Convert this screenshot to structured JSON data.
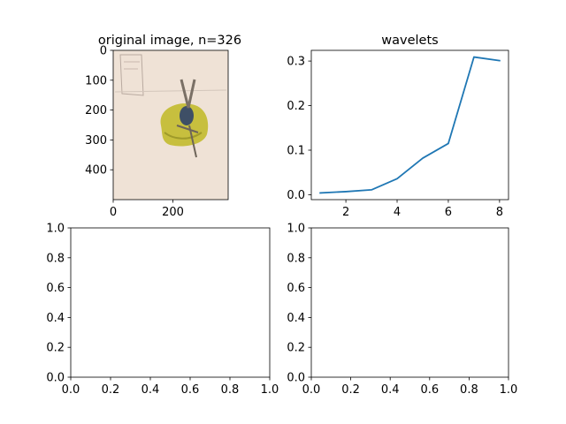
{
  "chart_data": [
    {
      "type": "image",
      "title": "original image, n=326",
      "xticks": [
        0,
        200
      ],
      "yticks": [
        0,
        100,
        200,
        300,
        400
      ],
      "xlim": [
        0,
        385
      ],
      "ylim": [
        500,
        0
      ],
      "image_description": "photo of a bird perched on a yellow-green object"
    },
    {
      "type": "line",
      "title": "wavelets",
      "x": [
        1,
        2,
        3,
        4,
        5,
        6,
        7,
        8
      ],
      "y": [
        0.004,
        0.007,
        0.011,
        0.036,
        0.082,
        0.115,
        0.309,
        0.301
      ],
      "xticks": [
        2,
        4,
        6,
        8
      ],
      "yticks": [
        "0.0",
        "0.1",
        "0.2",
        "0.3"
      ],
      "xlim": [
        0.65,
        8.35
      ],
      "ylim": [
        -0.011,
        0.324
      ],
      "color": "#1f77b4"
    },
    {
      "type": "empty",
      "xticks": [
        "0.0",
        "0.2",
        "0.4",
        "0.6",
        "0.8",
        "1.0"
      ],
      "yticks": [
        "0.0",
        "0.2",
        "0.4",
        "0.6",
        "0.8",
        "1.0"
      ],
      "xlim": [
        0,
        1
      ],
      "ylim": [
        0,
        1
      ]
    },
    {
      "type": "empty",
      "xticks": [
        "0.0",
        "0.2",
        "0.4",
        "0.6",
        "0.8",
        "1.0"
      ],
      "yticks": [
        "0.0",
        "0.2",
        "0.4",
        "0.6",
        "0.8",
        "1.0"
      ],
      "xlim": [
        0,
        1
      ],
      "ylim": [
        0,
        1
      ]
    }
  ]
}
